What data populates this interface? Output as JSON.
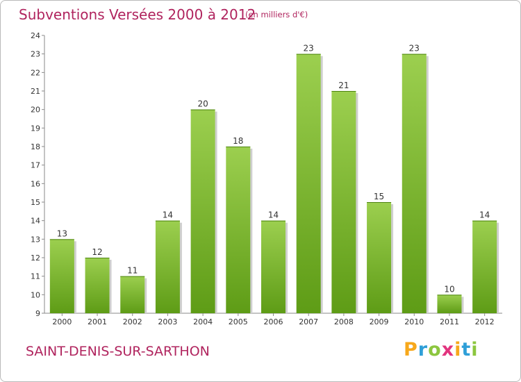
{
  "header": {
    "title": "Subventions Versées 2000 à 2012",
    "subtitle": "(en milliers d'€)"
  },
  "footer": {
    "commune": "SAINT-DENIS-SUR-SARTHON",
    "brand_letters": [
      "P",
      "r",
      "o",
      "x",
      "i",
      "t",
      "i"
    ],
    "brand_colors": [
      "#f7a81b",
      "#2f9fd8",
      "#8cc63f",
      "#e2347e",
      "#f7a81b",
      "#2f9fd8",
      "#8cc63f"
    ]
  },
  "chart_data": {
    "type": "bar",
    "title": "Subventions Versées 2000 à 2012",
    "subtitle": "(en milliers d'€)",
    "categories": [
      "2000",
      "2001",
      "2002",
      "2003",
      "2004",
      "2005",
      "2006",
      "2007",
      "2008",
      "2009",
      "2010",
      "2011",
      "2012"
    ],
    "values": [
      13,
      12,
      11,
      14,
      20,
      18,
      14,
      23,
      21,
      15,
      23,
      10,
      14
    ],
    "value_labels": [
      "13",
      "12",
      "11",
      "14",
      "20",
      "18",
      "14",
      "23",
      "21",
      "15",
      "23",
      "10",
      "14"
    ],
    "ylim": [
      9,
      24
    ],
    "yticks": [
      "9",
      "10",
      "11",
      "12",
      "13",
      "14",
      "15",
      "16",
      "17",
      "18",
      "19",
      "20",
      "21",
      "22",
      "23",
      "24"
    ],
    "grid": false,
    "colors": {
      "bar_light": "#9ccf4f",
      "bar_dark": "#5e9c16",
      "axis": "#8a8a8a",
      "text": "#333333"
    }
  }
}
